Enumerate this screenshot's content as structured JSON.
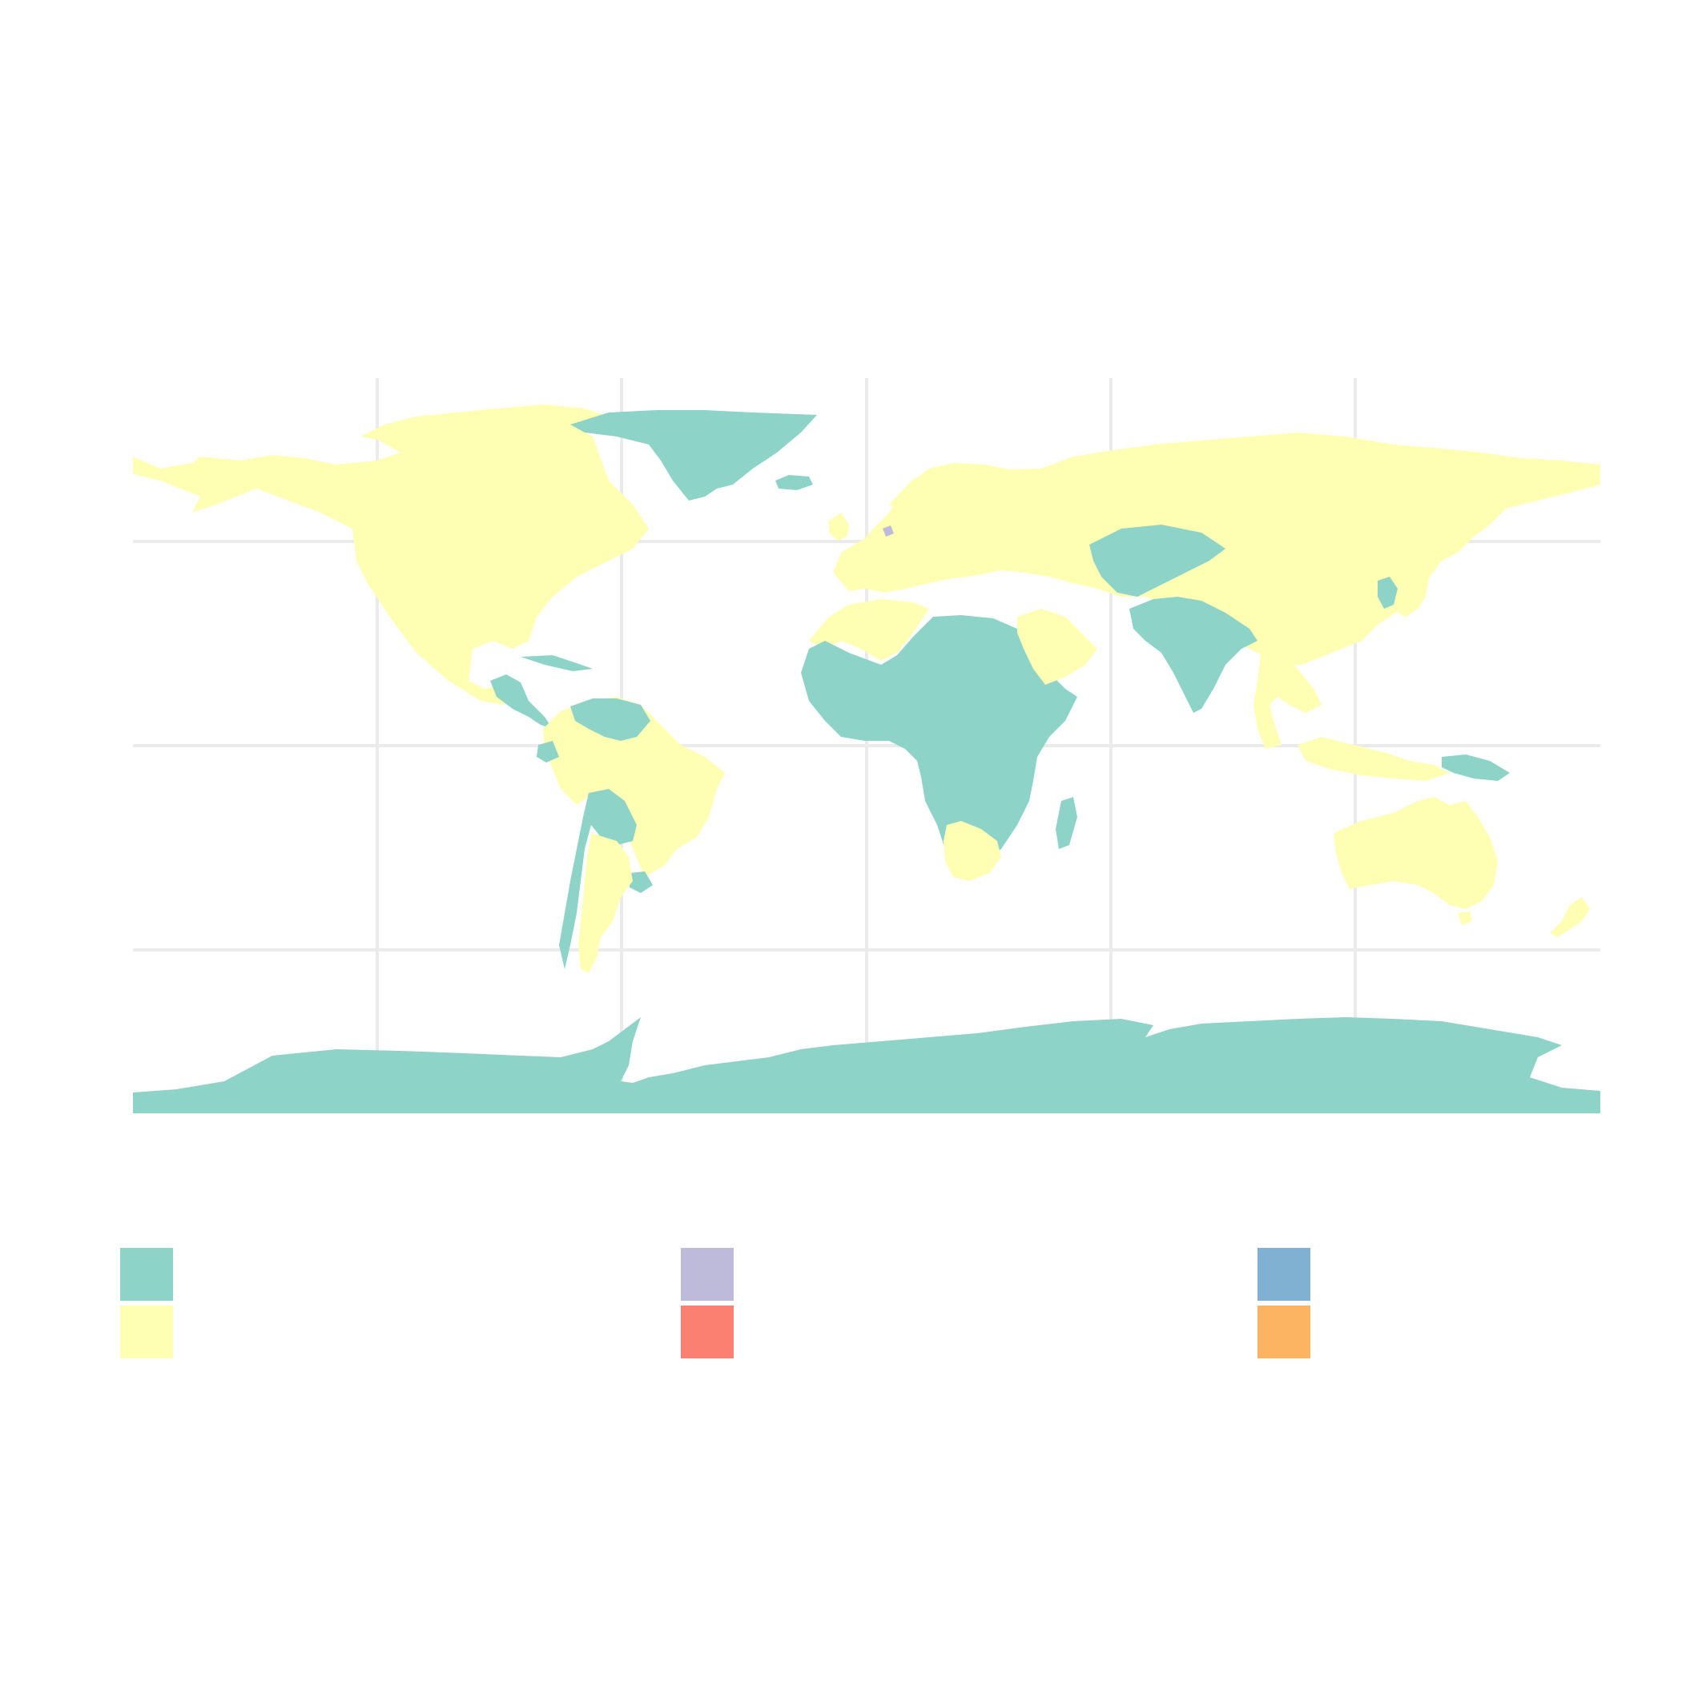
{
  "map": {
    "projection": "equirectangular",
    "lon_range": [
      -180,
      180
    ],
    "lat_range": [
      -90,
      90
    ],
    "graticule": {
      "meridians": [
        -120,
        -60,
        0,
        60,
        120
      ],
      "parallels": [
        -50,
        0,
        50
      ]
    },
    "colors": {
      "teal": "#8dd3c7",
      "yellow": "#ffffb3",
      "lavender": "#bebada",
      "grid": "#ebebeb",
      "ocean": "#ffffff"
    },
    "regions": [
      {
        "name": "north-america",
        "color_key": "yellow"
      },
      {
        "name": "greenland",
        "color_key": "teal"
      },
      {
        "name": "central-america",
        "color_key": "teal"
      },
      {
        "name": "south-america-north",
        "color_key": "yellow"
      },
      {
        "name": "venezuela-guianas",
        "color_key": "teal"
      },
      {
        "name": "bolivia-chile",
        "color_key": "teal"
      },
      {
        "name": "uruguay",
        "color_key": "teal"
      },
      {
        "name": "argentina",
        "color_key": "yellow"
      },
      {
        "name": "europe-russia-east-asia",
        "color_key": "yellow"
      },
      {
        "name": "africa",
        "color_key": "teal"
      },
      {
        "name": "north-africa",
        "color_key": "yellow"
      },
      {
        "name": "southern-africa",
        "color_key": "yellow"
      },
      {
        "name": "madagascar",
        "color_key": "teal"
      },
      {
        "name": "arabia",
        "color_key": "yellow"
      },
      {
        "name": "central-asia",
        "color_key": "teal"
      },
      {
        "name": "south-asia",
        "color_key": "teal"
      },
      {
        "name": "southeast-asia",
        "color_key": "yellow"
      },
      {
        "name": "korea",
        "color_key": "teal"
      },
      {
        "name": "japan",
        "color_key": "yellow"
      },
      {
        "name": "indonesia",
        "color_key": "yellow"
      },
      {
        "name": "papua-new-guinea",
        "color_key": "teal"
      },
      {
        "name": "australia",
        "color_key": "yellow"
      },
      {
        "name": "new-zealand",
        "color_key": "yellow"
      },
      {
        "name": "antarctica",
        "color_key": "teal"
      },
      {
        "name": "netherlands",
        "color_key": "lavender"
      }
    ]
  },
  "legend": {
    "entries": [
      {
        "color": "#8dd3c7",
        "label": ""
      },
      {
        "color": "#ffffb3",
        "label": ""
      },
      {
        "color": "#bebada",
        "label": ""
      },
      {
        "color": "#fb8072",
        "label": ""
      },
      {
        "color": "#80b1d3",
        "label": ""
      },
      {
        "color": "#fdb462",
        "label": ""
      }
    ]
  }
}
